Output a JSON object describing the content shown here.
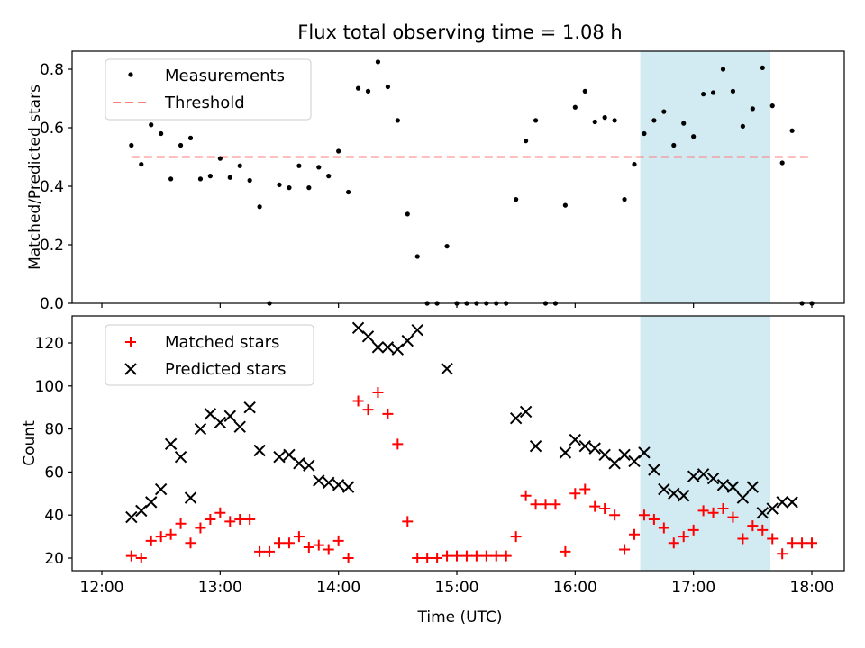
{
  "chart_data": [
    {
      "type": "scatter",
      "title": "Flux total observing time = 1.08 h",
      "ylabel": "Matched/Predicted stars",
      "ylim": [
        0,
        0.86
      ],
      "yticks": [
        0.0,
        0.2,
        0.4,
        0.6,
        0.8
      ],
      "ytick_labels": [
        "0.0",
        "0.2",
        "0.4",
        "0.6",
        "0.8"
      ],
      "x_axis": "time (UTC), shared with lower panel",
      "shaded_interval": {
        "start": "16:33",
        "end": "17:39",
        "color": "#ADD8E6"
      },
      "legend": {
        "placement": "top-left",
        "entries": [
          "Measurements",
          "Threshold"
        ]
      },
      "series": [
        {
          "name": "Measurements",
          "marker": "point",
          "color": "#000000",
          "points": [
            [
              "12:15",
              0.54
            ],
            [
              "12:20",
              0.475
            ],
            [
              "12:25",
              0.61
            ],
            [
              "12:30",
              0.58
            ],
            [
              "12:35",
              0.425
            ],
            [
              "12:40",
              0.54
            ],
            [
              "12:45",
              0.565
            ],
            [
              "12:50",
              0.425
            ],
            [
              "12:55",
              0.435
            ],
            [
              "13:00",
              0.495
            ],
            [
              "13:05",
              0.43
            ],
            [
              "13:10",
              0.47
            ],
            [
              "13:15",
              0.42
            ],
            [
              "13:20",
              0.33
            ],
            [
              "13:25",
              0.0
            ],
            [
              "13:30",
              0.405
            ],
            [
              "13:35",
              0.395
            ],
            [
              "13:40",
              0.47
            ],
            [
              "13:45",
              0.395
            ],
            [
              "13:50",
              0.465
            ],
            [
              "13:55",
              0.435
            ],
            [
              "14:00",
              0.52
            ],
            [
              "14:05",
              0.38
            ],
            [
              "14:10",
              0.735
            ],
            [
              "14:15",
              0.725
            ],
            [
              "14:20",
              0.825
            ],
            [
              "14:25",
              0.74
            ],
            [
              "14:30",
              0.625
            ],
            [
              "14:35",
              0.305
            ],
            [
              "14:40",
              0.16
            ],
            [
              "14:45",
              0.0
            ],
            [
              "14:50",
              0.0
            ],
            [
              "14:55",
              0.195
            ],
            [
              "15:00",
              0.0
            ],
            [
              "15:05",
              0.0
            ],
            [
              "15:10",
              0.0
            ],
            [
              "15:15",
              0.0
            ],
            [
              "15:20",
              0.0
            ],
            [
              "15:25",
              0.0
            ],
            [
              "15:30",
              0.355
            ],
            [
              "15:35",
              0.555
            ],
            [
              "15:40",
              0.625
            ],
            [
              "15:45",
              0.0
            ],
            [
              "15:50",
              0.0
            ],
            [
              "15:55",
              0.335
            ],
            [
              "16:00",
              0.67
            ],
            [
              "16:05",
              0.725
            ],
            [
              "16:10",
              0.62
            ],
            [
              "16:15",
              0.635
            ],
            [
              "16:20",
              0.625
            ],
            [
              "16:25",
              0.355
            ],
            [
              "16:30",
              0.475
            ],
            [
              "16:35",
              0.58
            ],
            [
              "16:40",
              0.625
            ],
            [
              "16:45",
              0.655
            ],
            [
              "16:50",
              0.54
            ],
            [
              "16:55",
              0.615
            ],
            [
              "17:00",
              0.57
            ],
            [
              "17:05",
              0.715
            ],
            [
              "17:10",
              0.72
            ],
            [
              "17:15",
              0.8
            ],
            [
              "17:20",
              0.725
            ],
            [
              "17:25",
              0.605
            ],
            [
              "17:30",
              0.665
            ],
            [
              "17:35",
              0.805
            ],
            [
              "17:40",
              0.675
            ],
            [
              "17:45",
              0.48
            ],
            [
              "17:50",
              0.59
            ],
            [
              "17:55",
              0.0
            ],
            [
              "18:00",
              0.0
            ]
          ]
        },
        {
          "name": "Threshold",
          "style": "dashed-line",
          "color": "#FF7F7F",
          "x": [
            "12:15",
            "18:00"
          ],
          "y": [
            0.5,
            0.5
          ]
        }
      ]
    },
    {
      "type": "scatter",
      "xlabel": "Time (UTC)",
      "ylabel": "Count",
      "xlim": [
        "11:59",
        "18:08"
      ],
      "ylim": [
        15,
        131
      ],
      "xticks": [
        "12:00",
        "13:00",
        "14:00",
        "15:00",
        "16:00",
        "17:00",
        "18:00"
      ],
      "yticks": [
        20,
        40,
        60,
        80,
        100,
        120
      ],
      "ytick_labels": [
        "20",
        "40",
        "60",
        "80",
        "100",
        "120"
      ],
      "shaded_interval": {
        "start": "16:33",
        "end": "17:39",
        "color": "#ADD8E6"
      },
      "legend": {
        "placement": "top-left",
        "entries": [
          "Matched stars",
          "Predicted stars"
        ]
      },
      "series": [
        {
          "name": "Matched stars",
          "marker": "plus",
          "color": "#FF0000",
          "points": [
            [
              "12:15",
              21
            ],
            [
              "12:20",
              20
            ],
            [
              "12:25",
              28
            ],
            [
              "12:30",
              30
            ],
            [
              "12:35",
              31
            ],
            [
              "12:40",
              36
            ],
            [
              "12:45",
              27
            ],
            [
              "12:50",
              34
            ],
            [
              "12:55",
              38
            ],
            [
              "13:00",
              41
            ],
            [
              "13:05",
              37
            ],
            [
              "13:10",
              38
            ],
            [
              "13:15",
              38
            ],
            [
              "13:20",
              23
            ],
            [
              "13:25",
              23
            ],
            [
              "13:30",
              27
            ],
            [
              "13:35",
              27
            ],
            [
              "13:40",
              30
            ],
            [
              "13:45",
              25
            ],
            [
              "13:50",
              26
            ],
            [
              "13:55",
              24
            ],
            [
              "14:00",
              28
            ],
            [
              "14:05",
              20
            ],
            [
              "14:10",
              93
            ],
            [
              "14:15",
              89
            ],
            [
              "14:20",
              97
            ],
            [
              "14:25",
              87
            ],
            [
              "14:30",
              73
            ],
            [
              "14:35",
              37
            ],
            [
              "14:40",
              20
            ],
            [
              "14:45",
              20
            ],
            [
              "14:50",
              20
            ],
            [
              "14:55",
              21
            ],
            [
              "15:00",
              21
            ],
            [
              "15:05",
              21
            ],
            [
              "15:10",
              21
            ],
            [
              "15:15",
              21
            ],
            [
              "15:20",
              21
            ],
            [
              "15:25",
              21
            ],
            [
              "15:30",
              30
            ],
            [
              "15:35",
              49
            ],
            [
              "15:40",
              45
            ],
            [
              "15:45",
              45
            ],
            [
              "15:50",
              45
            ],
            [
              "15:55",
              23
            ],
            [
              "16:00",
              50
            ],
            [
              "16:05",
              52
            ],
            [
              "16:10",
              44
            ],
            [
              "16:15",
              43
            ],
            [
              "16:20",
              40
            ],
            [
              "16:25",
              24
            ],
            [
              "16:30",
              31
            ],
            [
              "16:35",
              40
            ],
            [
              "16:40",
              38
            ],
            [
              "16:45",
              34
            ],
            [
              "16:50",
              27
            ],
            [
              "16:55",
              30
            ],
            [
              "17:00",
              33
            ],
            [
              "17:05",
              42
            ],
            [
              "17:10",
              41
            ],
            [
              "17:15",
              43
            ],
            [
              "17:20",
              39
            ],
            [
              "17:25",
              29
            ],
            [
              "17:30",
              35
            ],
            [
              "17:35",
              33
            ],
            [
              "17:40",
              29
            ],
            [
              "17:45",
              22
            ],
            [
              "17:50",
              27
            ],
            [
              "17:55",
              27
            ],
            [
              "18:00",
              27
            ]
          ]
        },
        {
          "name": "Predicted stars",
          "marker": "x",
          "color": "#000000",
          "points": [
            [
              "12:15",
              39
            ],
            [
              "12:20",
              42
            ],
            [
              "12:25",
              46
            ],
            [
              "12:30",
              52
            ],
            [
              "12:35",
              73
            ],
            [
              "12:40",
              67
            ],
            [
              "12:45",
              48
            ],
            [
              "12:50",
              80
            ],
            [
              "12:55",
              87
            ],
            [
              "13:00",
              83
            ],
            [
              "13:05",
              86
            ],
            [
              "13:10",
              81
            ],
            [
              "13:15",
              90
            ],
            [
              "13:20",
              70
            ],
            [
              "13:30",
              67
            ],
            [
              "13:35",
              68
            ],
            [
              "13:40",
              64
            ],
            [
              "13:45",
              63
            ],
            [
              "13:50",
              56
            ],
            [
              "13:55",
              55
            ],
            [
              "14:00",
              54
            ],
            [
              "14:05",
              53
            ],
            [
              "14:10",
              127
            ],
            [
              "14:15",
              123
            ],
            [
              "14:20",
              118
            ],
            [
              "14:25",
              118
            ],
            [
              "14:30",
              117
            ],
            [
              "14:35",
              121
            ],
            [
              "14:40",
              126
            ],
            [
              "14:55",
              108
            ],
            [
              "15:30",
              85
            ],
            [
              "15:35",
              88
            ],
            [
              "15:40",
              72
            ],
            [
              "15:55",
              69
            ],
            [
              "16:00",
              75
            ],
            [
              "16:05",
              72
            ],
            [
              "16:10",
              71
            ],
            [
              "16:15",
              68
            ],
            [
              "16:20",
              64
            ],
            [
              "16:25",
              68
            ],
            [
              "16:30",
              65
            ],
            [
              "16:35",
              69
            ],
            [
              "16:40",
              61
            ],
            [
              "16:45",
              52
            ],
            [
              "16:50",
              50
            ],
            [
              "16:55",
              49
            ],
            [
              "17:00",
              58
            ],
            [
              "17:05",
              59
            ],
            [
              "17:10",
              57
            ],
            [
              "17:15",
              54
            ],
            [
              "17:20",
              53
            ],
            [
              "17:25",
              48
            ],
            [
              "17:30",
              53
            ],
            [
              "17:35",
              41
            ],
            [
              "17:40",
              43
            ],
            [
              "17:45",
              46
            ],
            [
              "17:50",
              46
            ]
          ]
        }
      ]
    }
  ]
}
